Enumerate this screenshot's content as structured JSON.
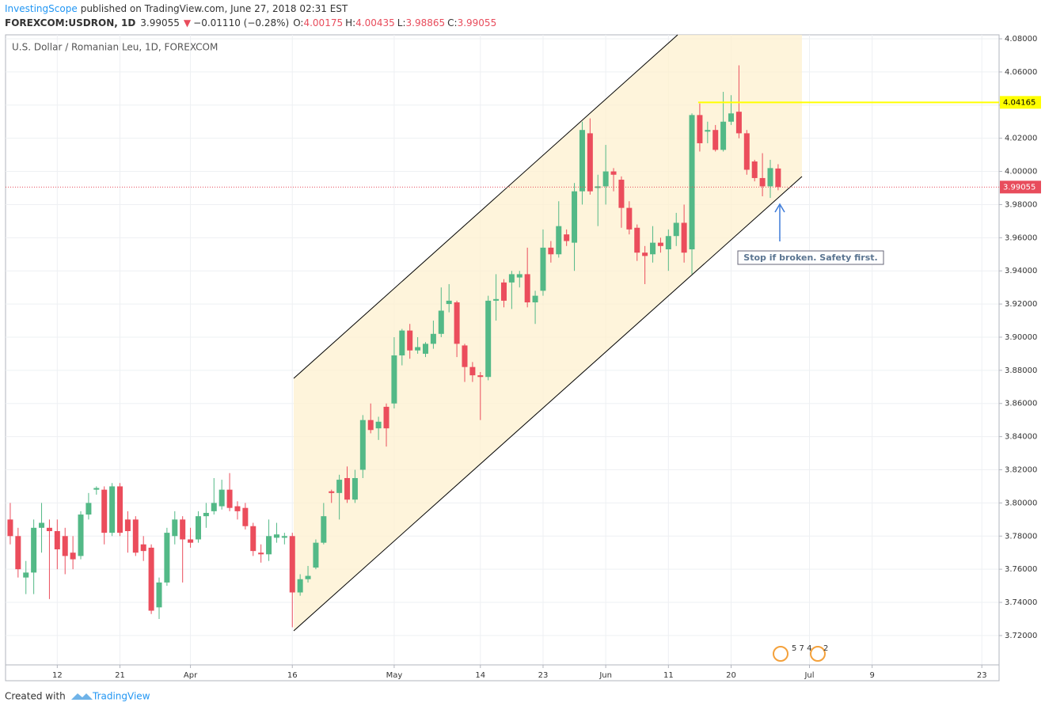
{
  "header": {
    "author": "InvestingScope",
    "published": "published on TradingView.com, June 27, 2018 02:31 EST",
    "symbol": "FOREXCOM:USDRON, 1D",
    "last": "3.99055",
    "arrow": "▼",
    "change": "−0.01110 (−0.28%)",
    "o_label": "O:",
    "o": "4.00175",
    "h_label": "H:",
    "h": "4.00435",
    "l_label": "L:",
    "l": "3.98865",
    "c_label": "C:",
    "c": "3.99055"
  },
  "footer": {
    "created": "Created with",
    "brand": "TradingView"
  },
  "chart_data": {
    "type": "candlestick",
    "title": "U.S. Dollar / Romanian Leu, 1D, FOREXCOM",
    "up_color": "#53b987",
    "down_color": "#eb4d5c",
    "open": [
      3.79,
      3.78,
      3.755,
      3.758,
      3.785,
      3.785,
      3.783,
      3.78,
      3.77,
      3.768,
      3.793,
      3.808,
      3.808,
      3.782,
      3.81,
      3.79,
      3.79,
      3.775,
      3.773,
      3.737,
      3.752,
      3.78,
      3.79,
      3.778,
      3.778,
      3.792,
      3.795,
      3.798,
      3.808,
      3.798,
      3.797,
      3.786,
      3.77,
      3.769,
      3.779,
      3.779,
      3.78,
      3.746,
      3.754,
      3.761,
      3.776,
      3.807,
      3.806,
      3.815,
      3.802,
      3.82,
      3.85,
      3.845,
      3.858,
      3.86,
      3.889,
      3.904,
      3.892,
      3.89,
      3.896,
      3.902,
      3.92,
      3.921,
      3.895,
      3.882,
      3.877,
      3.876,
      3.922,
      3.933,
      3.933,
      3.936,
      3.938,
      3.921,
      3.928,
      3.954,
      3.95,
      3.962,
      3.957,
      3.988,
      4.023,
      3.99,
      3.991,
      4.0,
      3.995,
      3.978,
      3.966,
      3.951,
      3.95,
      3.957,
      3.953,
      3.961,
      3.969,
      3.953,
      4.034,
      4.024,
      4.025,
      4.013,
      4.03,
      4.036,
      4.023,
      4.006,
      3.996,
      3.991,
      4.00175
    ],
    "high": [
      3.8,
      3.785,
      3.765,
      3.79,
      3.8,
      3.79,
      3.79,
      3.785,
      3.78,
      3.795,
      3.806,
      3.81,
      3.81,
      3.812,
      3.812,
      3.795,
      3.792,
      3.78,
      3.775,
      3.755,
      3.785,
      3.795,
      3.792,
      3.785,
      3.795,
      3.8,
      3.815,
      3.814,
      3.818,
      3.801,
      3.8,
      3.788,
      3.775,
      3.79,
      3.788,
      3.782,
      3.782,
      3.757,
      3.762,
      3.778,
      3.8,
      3.808,
      3.817,
      3.822,
      3.82,
      3.853,
      3.86,
      3.852,
      3.86,
      3.9,
      3.905,
      3.908,
      3.9,
      3.897,
      3.91,
      3.93,
      3.932,
      3.922,
      3.896,
      3.885,
      3.879,
      3.925,
      3.938,
      3.935,
      3.94,
      3.94,
      3.954,
      3.928,
      3.965,
      3.958,
      3.982,
      3.965,
      3.993,
      4.03,
      4.032,
      3.998,
      4.016,
      4.002,
      3.997,
      3.982,
      3.968,
      3.955,
      3.967,
      3.96,
      3.965,
      3.975,
      3.98,
      4.035,
      4.041,
      4.03,
      4.028,
      4.048,
      4.046,
      4.064,
      4.025,
      4.007,
      4.011,
      4.007,
      4.00435
    ],
    "low": [
      3.775,
      3.755,
      3.745,
      3.745,
      3.77,
      3.742,
      3.76,
      3.757,
      3.76,
      3.766,
      3.79,
      3.805,
      3.775,
      3.78,
      3.78,
      3.77,
      3.768,
      3.765,
      3.733,
      3.73,
      3.75,
      3.775,
      3.752,
      3.773,
      3.776,
      3.785,
      3.793,
      3.796,
      3.795,
      3.79,
      3.784,
      3.768,
      3.764,
      3.765,
      3.776,
      3.775,
      3.725,
      3.744,
      3.752,
      3.76,
      3.775,
      3.8,
      3.79,
      3.8,
      3.8,
      3.815,
      3.842,
      3.838,
      3.834,
      3.857,
      3.883,
      3.887,
      3.89,
      3.888,
      3.893,
      3.9,
      3.915,
      3.888,
      3.873,
      3.873,
      3.85,
      3.874,
      3.91,
      3.918,
      3.917,
      3.93,
      3.918,
      3.908,
      3.925,
      3.945,
      3.948,
      3.955,
      3.94,
      3.98,
      3.986,
      3.967,
      3.98,
      3.988,
      3.966,
      3.962,
      3.946,
      3.932,
      3.945,
      3.951,
      3.94,
      3.955,
      3.945,
      3.938,
      4.012,
      4.017,
      4.012,
      4.012,
      4.028,
      4.02,
      3.998,
      3.994,
      3.985,
      3.984,
      3.98865
    ],
    "close": [
      3.78,
      3.76,
      3.758,
      3.785,
      3.788,
      3.783,
      3.772,
      3.768,
      3.766,
      3.793,
      3.8,
      3.809,
      3.782,
      3.81,
      3.782,
      3.783,
      3.77,
      3.771,
      3.735,
      3.752,
      3.782,
      3.79,
      3.778,
      3.776,
      3.792,
      3.794,
      3.8,
      3.808,
      3.797,
      3.795,
      3.786,
      3.771,
      3.769,
      3.78,
      3.781,
      3.78,
      3.746,
      3.754,
      3.756,
      3.776,
      3.792,
      3.806,
      3.814,
      3.802,
      3.815,
      3.85,
      3.844,
      3.849,
      3.845,
      3.889,
      3.904,
      3.892,
      3.894,
      3.896,
      3.902,
      3.916,
      3.922,
      3.896,
      3.882,
      3.877,
      3.876,
      3.922,
      3.923,
      3.922,
      3.938,
      3.938,
      3.921,
      3.925,
      3.954,
      3.95,
      3.967,
      3.958,
      3.988,
      4.025,
      3.988,
      3.991,
      4.0,
      3.998,
      3.978,
      3.965,
      3.951,
      3.949,
      3.957,
      3.955,
      3.961,
      3.969,
      3.951,
      4.034,
      4.017,
      4.025,
      4.013,
      4.03,
      4.035,
      4.023,
      4.001,
      3.996,
      3.991,
      4.002,
      3.99055
    ],
    "xlim": [
      -0.6,
      126.2
    ],
    "xticks": [
      {
        "value": 6,
        "label": "12"
      },
      {
        "value": 14,
        "label": "21"
      },
      {
        "value": 23,
        "label": "Apr"
      },
      {
        "value": 36,
        "label": "16"
      },
      {
        "value": 49,
        "label": "May"
      },
      {
        "value": 60,
        "label": "14"
      },
      {
        "value": 68,
        "label": "23"
      },
      {
        "value": 76,
        "label": "Jun"
      },
      {
        "value": 84,
        "label": "11"
      },
      {
        "value": 92,
        "label": "20"
      },
      {
        "value": 102,
        "label": "Jul"
      },
      {
        "value": 110,
        "label": "9"
      },
      {
        "value": 124,
        "label": "23"
      }
    ],
    "ylim": [
      3.7023,
      4.0824
    ],
    "yticks": [
      {
        "value": 3.72,
        "label": "3.72000"
      },
      {
        "value": 3.74,
        "label": "3.74000"
      },
      {
        "value": 3.76,
        "label": "3.76000"
      },
      {
        "value": 3.78,
        "label": "3.78000"
      },
      {
        "value": 3.8,
        "label": "3.80000"
      },
      {
        "value": 3.82,
        "label": "3.82000"
      },
      {
        "value": 3.84,
        "label": "3.84000"
      },
      {
        "value": 3.86,
        "label": "3.86000"
      },
      {
        "value": 3.88,
        "label": "3.88000"
      },
      {
        "value": 3.9,
        "label": "3.90000"
      },
      {
        "value": 3.92,
        "label": "3.92000"
      },
      {
        "value": 3.94,
        "label": "3.94000"
      },
      {
        "value": 3.96,
        "label": "3.96000"
      },
      {
        "value": 3.98,
        "label": "3.98000"
      },
      {
        "value": 4.0,
        "label": "4.00000"
      },
      {
        "value": 4.02,
        "label": "4.02000"
      },
      {
        "value": 4.04,
        "label": "4.04000"
      },
      {
        "value": 4.06,
        "label": "4.06000"
      },
      {
        "value": 4.08,
        "label": "4.08000"
      }
    ],
    "grid": true,
    "price_lines": [
      {
        "value": 4.04165,
        "color": "#ffff00"
      },
      {
        "value": 3.99055,
        "color": "#e84c5c"
      }
    ],
    "annotation": "Stop if broken. Safety first.",
    "events": [
      "5 7 4",
      "2"
    ]
  }
}
